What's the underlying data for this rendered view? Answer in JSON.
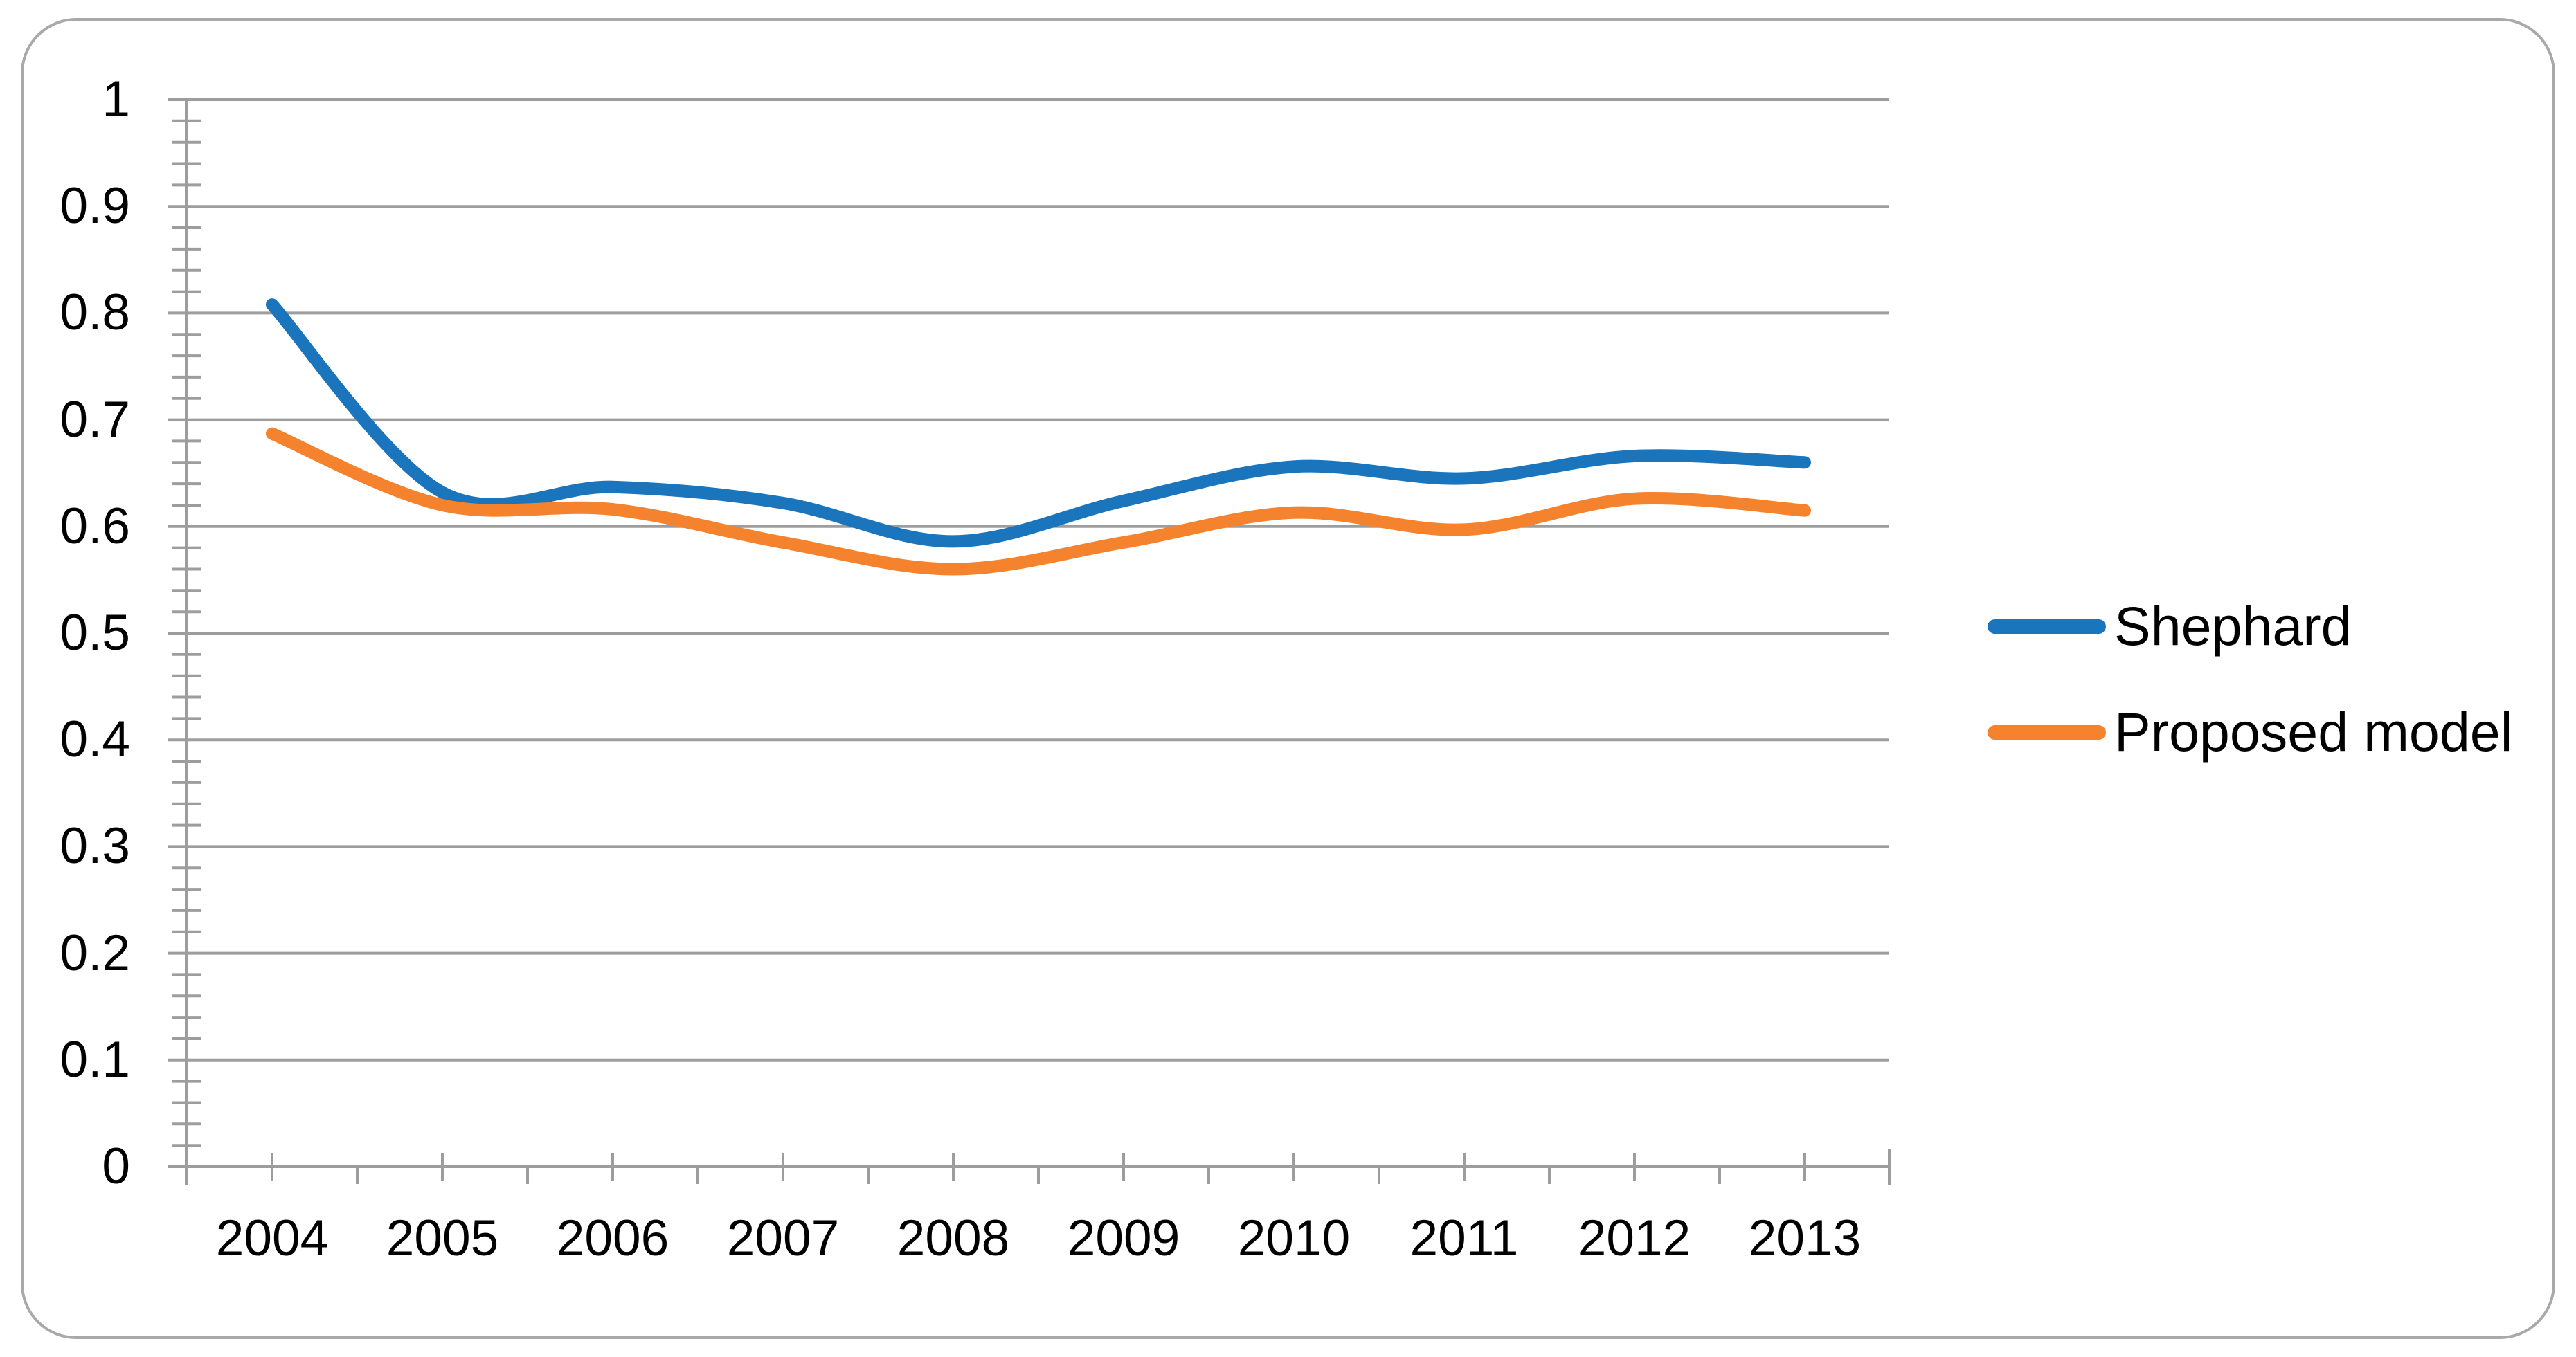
{
  "figure": {
    "background": "#FFFFFF",
    "border_color": "#A9A9A9"
  },
  "chart_data": {
    "type": "line",
    "title": "",
    "xlabel": "",
    "ylabel": "",
    "categories": [
      "2004",
      "2005",
      "2006",
      "2007",
      "2008",
      "2009",
      "2010",
      "2011",
      "2012",
      "2013"
    ],
    "series": [
      {
        "name": "Shephard",
        "color": "#1B75BC",
        "values": [
          0.808,
          0.632,
          0.637,
          0.622,
          0.586,
          0.624,
          0.656,
          0.645,
          0.666,
          0.66
        ]
      },
      {
        "name": "Proposed model",
        "color": "#F5822D",
        "values": [
          0.687,
          0.62,
          0.616,
          0.585,
          0.56,
          0.585,
          0.613,
          0.597,
          0.626,
          0.615
        ]
      }
    ],
    "ylim": [
      0,
      1
    ],
    "y_tick_labels": [
      "0",
      "0.1",
      "0.2",
      "0.3",
      "0.4",
      "0.5",
      "0.6",
      "0.7",
      "0.8",
      "0.9",
      "1"
    ],
    "y_major_step": 0.1,
    "y_minor_step": 0.02,
    "grid": "horizontal-major",
    "smooth_lines": true,
    "legend_position": "right",
    "axis_color": "#9D9D9D",
    "grid_color": "#9D9D9D"
  }
}
